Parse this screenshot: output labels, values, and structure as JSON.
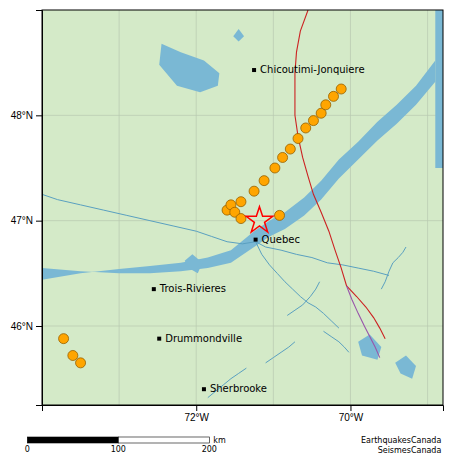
{
  "chart_data": {
    "type": "map",
    "background": "#d4eac8",
    "xlim": [
      -74.0,
      -68.8
    ],
    "ylim": [
      45.25,
      49.0
    ],
    "xticks": [
      {
        "value": -72,
        "label": "72°W"
      },
      {
        "value": -70,
        "label": "70°W"
      }
    ],
    "yticks": [
      {
        "value": 46,
        "label": "46°N"
      },
      {
        "value": 47,
        "label": "47°N"
      },
      {
        "value": 48,
        "label": "48°N"
      }
    ],
    "grid": true,
    "grid_lines": {
      "x": [
        -73,
        -72,
        -71,
        -70,
        -69
      ],
      "y": [
        46,
        47,
        48
      ],
      "color": "#b8c8b0"
    },
    "areas": {
      "color": "#7ab8d4",
      "shapes": [
        {
          "x": [
            -74.0,
            -73.5,
            -73.0,
            -72.6,
            -72.2,
            -71.85,
            -71.55,
            -71.25,
            -71.05,
            -70.85,
            -70.6,
            -70.38,
            -70.15,
            -69.9,
            -69.65,
            -69.4,
            -69.15,
            -68.9,
            -68.9,
            -69.15,
            -69.4,
            -69.65,
            -69.9,
            -70.15,
            -70.38,
            -70.6,
            -70.85,
            -71.05,
            -71.25,
            -71.55,
            -71.85,
            -72.2,
            -72.6,
            -73.0,
            -73.5,
            -74.0
          ],
          "y": [
            46.55,
            46.52,
            46.5,
            46.5,
            46.52,
            46.55,
            46.6,
            46.75,
            46.85,
            46.92,
            47.05,
            47.2,
            47.4,
            47.58,
            47.76,
            47.92,
            48.1,
            48.32,
            48.52,
            48.28,
            48.1,
            47.94,
            47.75,
            47.58,
            47.38,
            47.22,
            47.08,
            47.0,
            46.9,
            46.72,
            46.65,
            46.6,
            46.57,
            46.54,
            46.5,
            46.44
          ]
        },
        {
          "x": [
            -72.45,
            -72.2,
            -71.9,
            -71.7,
            -71.72,
            -71.95,
            -72.25,
            -72.48,
            -72.45
          ],
          "y": [
            48.68,
            48.6,
            48.52,
            48.4,
            48.28,
            48.22,
            48.28,
            48.48,
            48.68
          ]
        },
        {
          "x": [
            -71.52,
            -71.45,
            -71.38,
            -71.45,
            -71.52
          ],
          "y": [
            48.75,
            48.7,
            48.75,
            48.82,
            48.75
          ]
        },
        {
          "x": [
            -68.9,
            -68.8,
            -68.8,
            -68.9
          ],
          "y": [
            47.5,
            47.5,
            49.0,
            49.0
          ]
        },
        {
          "x": [
            -69.85,
            -69.65,
            -69.6,
            -69.75,
            -69.9,
            -69.85
          ],
          "y": [
            45.72,
            45.68,
            45.8,
            45.92,
            45.85,
            45.72
          ]
        },
        {
          "x": [
            -69.35,
            -69.2,
            -69.15,
            -69.28,
            -69.42,
            -69.35
          ],
          "y": [
            45.55,
            45.5,
            45.62,
            45.72,
            45.65,
            45.55
          ]
        },
        {
          "x": [
            -72.1,
            -71.98,
            -71.92,
            -72.05,
            -72.15,
            -72.1
          ],
          "y": [
            46.55,
            46.5,
            46.6,
            46.68,
            46.62,
            46.55
          ]
        }
      ]
    },
    "rivers": {
      "color": "#5aa0c0",
      "lines": [
        {
          "x": [
            -74.0,
            -73.8,
            -73.5,
            -73.2,
            -72.9,
            -72.6,
            -72.3,
            -72.0,
            -71.8,
            -71.6,
            -71.4,
            -71.23
          ],
          "y": [
            47.25,
            47.2,
            47.15,
            47.1,
            47.05,
            47.0,
            46.95,
            46.9,
            46.85,
            46.8,
            46.78,
            46.8
          ]
        },
        {
          "x": [
            -71.23,
            -71.1,
            -70.9,
            -70.7,
            -70.5,
            -70.3,
            -70.1,
            -69.9,
            -69.7,
            -69.5
          ],
          "y": [
            46.8,
            46.75,
            46.72,
            46.68,
            46.65,
            46.6,
            46.58,
            46.55,
            46.52,
            46.48
          ]
        },
        {
          "x": [
            -71.23,
            -71.15,
            -71.05,
            -70.95,
            -70.85,
            -70.75,
            -70.65,
            -70.55
          ],
          "y": [
            46.8,
            46.68,
            46.58,
            46.5,
            46.42,
            46.35,
            46.28,
            46.22
          ]
        },
        {
          "x": [
            -70.55,
            -70.45,
            -70.35,
            -70.25,
            -70.15
          ],
          "y": [
            46.22,
            46.18,
            46.12,
            46.05,
            45.98
          ]
        },
        {
          "x": [
            -69.6,
            -69.55,
            -69.5,
            -69.45,
            -69.38,
            -69.32,
            -69.28
          ],
          "y": [
            46.35,
            46.42,
            46.52,
            46.6,
            46.65,
            46.7,
            46.75
          ]
        },
        {
          "x": [
            -70.35,
            -70.25,
            -70.15,
            -70.08,
            -70.02
          ],
          "y": [
            45.95,
            45.9,
            45.85,
            45.8,
            45.75
          ]
        },
        {
          "x": [
            -71.85,
            -71.75,
            -71.65,
            -71.55,
            -71.45,
            -71.35
          ],
          "y": [
            45.32,
            45.38,
            45.44,
            45.5,
            45.55,
            45.6
          ]
        },
        {
          "x": [
            -70.82,
            -70.72,
            -70.62,
            -70.52,
            -70.45,
            -70.4
          ],
          "y": [
            46.1,
            46.15,
            46.2,
            46.28,
            46.35,
            46.42
          ]
        },
        {
          "x": [
            -71.1,
            -71.0,
            -70.9,
            -70.8,
            -70.72
          ],
          "y": [
            45.65,
            45.7,
            45.75,
            45.8,
            45.85
          ]
        }
      ]
    },
    "boundaries": [
      {
        "color": "#cc2222",
        "x": [
          -70.55,
          -70.65,
          -70.7,
          -70.72,
          -70.72,
          -70.72,
          -70.68,
          -70.62,
          -70.55,
          -70.48,
          -70.38,
          -70.28,
          -70.2,
          -70.12,
          -70.05
        ],
        "y": [
          49.0,
          48.8,
          48.6,
          48.4,
          48.2,
          48.0,
          47.8,
          47.6,
          47.42,
          47.25,
          47.08,
          46.9,
          46.72,
          46.55,
          46.38
        ]
      },
      {
        "color": "#cc2222",
        "x": [
          -70.05,
          -69.92,
          -69.8,
          -69.7,
          -69.62,
          -69.55
        ],
        "y": [
          46.38,
          46.28,
          46.18,
          46.08,
          45.98,
          45.88
        ]
      },
      {
        "color": "#9955aa",
        "x": [
          -70.05,
          -69.98,
          -69.9,
          -69.82,
          -69.75,
          -69.68,
          -69.62
        ],
        "y": [
          46.38,
          46.25,
          46.12,
          46.0,
          45.9,
          45.8,
          45.7
        ]
      }
    ],
    "points": {
      "color": "#FFA500",
      "x": [
        -71.6,
        -71.42,
        -71.25,
        -71.12,
        -70.98,
        -70.88,
        -70.78,
        -70.68,
        -70.58,
        -70.48,
        -70.38,
        -70.32,
        -70.22,
        -70.12,
        -70.92,
        -71.55,
        -71.5,
        -71.42,
        -73.72,
        -73.6,
        -73.5
      ],
      "y": [
        47.1,
        47.18,
        47.28,
        47.38,
        47.5,
        47.6,
        47.68,
        47.78,
        47.88,
        47.95,
        48.02,
        48.1,
        48.18,
        48.25,
        47.05,
        47.15,
        47.08,
        47.02,
        45.88,
        45.72,
        45.65
      ]
    },
    "epicenter": {
      "x": -71.18,
      "y": 47.0,
      "color": "red",
      "marker": "star"
    },
    "labels": [
      {
        "name": "Chicoutimi-Jonquiere",
        "x": -71.25,
        "y": 48.43
      },
      {
        "name": "Quebec",
        "x": -71.23,
        "y": 46.82
      },
      {
        "name": "Trois-Rivieres",
        "x": -72.55,
        "y": 46.35
      },
      {
        "name": "Drummondville",
        "x": -72.48,
        "y": 45.88
      },
      {
        "name": "Sherbrooke",
        "x": -71.9,
        "y": 45.4
      }
    ],
    "credit": [
      "EarthquakesCanada",
      "SeismesCanada"
    ],
    "scale_bar": {
      "range": [
        0,
        210
      ],
      "ticks": [
        0,
        100,
        200
      ],
      "unit": "km"
    }
  }
}
